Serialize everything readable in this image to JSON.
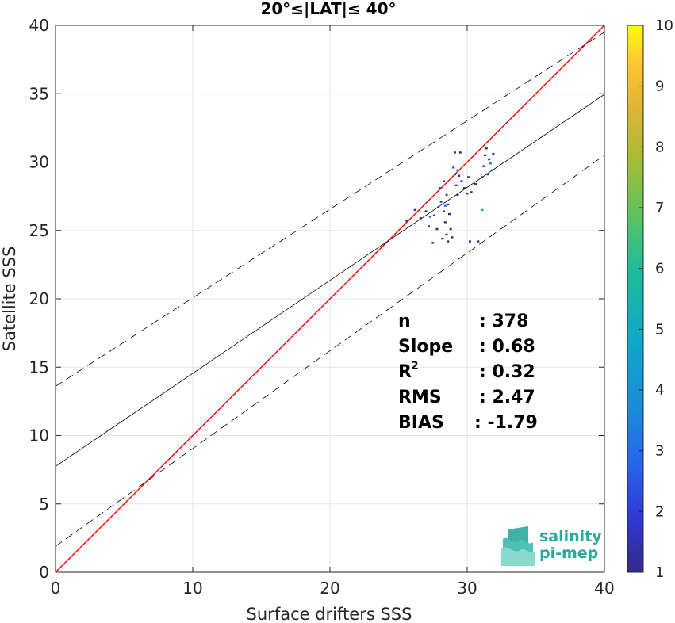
{
  "chart_data": {
    "type": "scatter",
    "title": "20°≤|LAT|≤ 40°",
    "xlabel": "Surface drifters SSS",
    "ylabel": "Satellite SSS",
    "xlim": [
      0,
      40
    ],
    "ylim": [
      0,
      40
    ],
    "xticks": [
      "0",
      "10",
      "20",
      "30",
      "40"
    ],
    "yticks": [
      "0",
      "5",
      "10",
      "15",
      "20",
      "25",
      "30",
      "35",
      "40"
    ],
    "grid": true,
    "colorbar": {
      "range": [
        1,
        10
      ],
      "ticks": [
        "1",
        "2",
        "3",
        "4",
        "5",
        "6",
        "7",
        "8",
        "9",
        "10"
      ],
      "colormap": "parula"
    },
    "lines": [
      {
        "kind": "identity",
        "color": "#ff0000",
        "x": [
          0,
          40
        ],
        "y": [
          0,
          40
        ]
      },
      {
        "kind": "fit",
        "color": "#000000",
        "style": "solid",
        "x": [
          0,
          40
        ],
        "y": [
          7.75,
          34.95
        ]
      },
      {
        "kind": "fit-upper",
        "color": "#000000",
        "style": "dashed",
        "x": [
          0,
          40
        ],
        "y": [
          13.6,
          39.5
        ]
      },
      {
        "kind": "fit-lower",
        "color": "#000000",
        "style": "dashed",
        "x": [
          0,
          40
        ],
        "y": [
          1.9,
          30.5
        ]
      }
    ],
    "points": [
      {
        "x": 25.6,
        "y": 25.7,
        "c": 1
      },
      {
        "x": 26.2,
        "y": 26.5,
        "c": 1
      },
      {
        "x": 26.6,
        "y": 25.9,
        "c": 1
      },
      {
        "x": 27.0,
        "y": 26.4,
        "c": 1
      },
      {
        "x": 27.2,
        "y": 25.3,
        "c": 1
      },
      {
        "x": 27.5,
        "y": 24.1,
        "c": 1
      },
      {
        "x": 27.8,
        "y": 25.1,
        "c": 1
      },
      {
        "x": 27.6,
        "y": 26.1,
        "c": 1
      },
      {
        "x": 27.9,
        "y": 26.7,
        "c": 1
      },
      {
        "x": 28.1,
        "y": 27.1,
        "c": 1
      },
      {
        "x": 28.3,
        "y": 26.4,
        "c": 2
      },
      {
        "x": 28.4,
        "y": 25.6,
        "c": 1
      },
      {
        "x": 28.5,
        "y": 24.7,
        "c": 1
      },
      {
        "x": 28.6,
        "y": 24.2,
        "c": 1
      },
      {
        "x": 28.2,
        "y": 24.4,
        "c": 1
      },
      {
        "x": 28.0,
        "y": 28.1,
        "c": 1
      },
      {
        "x": 28.3,
        "y": 28.6,
        "c": 1
      },
      {
        "x": 28.5,
        "y": 27.6,
        "c": 2
      },
      {
        "x": 28.6,
        "y": 26.9,
        "c": 1
      },
      {
        "x": 28.7,
        "y": 26.2,
        "c": 1
      },
      {
        "x": 28.8,
        "y": 25.1,
        "c": 1
      },
      {
        "x": 28.9,
        "y": 24.5,
        "c": 1
      },
      {
        "x": 29.0,
        "y": 29.6,
        "c": 2
      },
      {
        "x": 29.1,
        "y": 29.1,
        "c": 1
      },
      {
        "x": 29.2,
        "y": 28.3,
        "c": 2
      },
      {
        "x": 29.3,
        "y": 27.6,
        "c": 1
      },
      {
        "x": 29.1,
        "y": 30.7,
        "c": 1
      },
      {
        "x": 29.5,
        "y": 30.7,
        "c": 1
      },
      {
        "x": 29.4,
        "y": 29.0,
        "c": 1
      },
      {
        "x": 29.6,
        "y": 28.6,
        "c": 1
      },
      {
        "x": 29.8,
        "y": 28.1,
        "c": 1
      },
      {
        "x": 30.0,
        "y": 27.7,
        "c": 1
      },
      {
        "x": 30.3,
        "y": 27.8,
        "c": 1
      },
      {
        "x": 30.6,
        "y": 28.4,
        "c": 1
      },
      {
        "x": 30.2,
        "y": 24.2,
        "c": 1
      },
      {
        "x": 30.8,
        "y": 24.2,
        "c": 1
      },
      {
        "x": 31.1,
        "y": 28.9,
        "c": 1
      },
      {
        "x": 31.2,
        "y": 29.7,
        "c": 2
      },
      {
        "x": 31.3,
        "y": 30.5,
        "c": 1
      },
      {
        "x": 31.4,
        "y": 31.0,
        "c": 1
      },
      {
        "x": 31.6,
        "y": 30.2,
        "c": 1
      },
      {
        "x": 31.8,
        "y": 29.4,
        "c": 2
      },
      {
        "x": 31.9,
        "y": 30.6,
        "c": 1
      },
      {
        "x": 31.7,
        "y": 29.9,
        "c": 4
      },
      {
        "x": 31.1,
        "y": 26.5,
        "c": 5
      },
      {
        "x": 31.5,
        "y": 29.1,
        "c": 1
      },
      {
        "x": 27.3,
        "y": 26.0,
        "c": 3
      },
      {
        "x": 28.4,
        "y": 26.8,
        "c": 3
      },
      {
        "x": 29.3,
        "y": 29.4,
        "c": 3
      },
      {
        "x": 30.1,
        "y": 28.9,
        "c": 1
      }
    ],
    "stats": [
      {
        "label": "n",
        "value": ": 378"
      },
      {
        "label": "Slope",
        "value": ": 0.68"
      },
      {
        "label": "R",
        "sup": "2",
        "value": ": 0.32"
      },
      {
        "label": "RMS",
        "value": ": 2.47"
      },
      {
        "label": "BIAS",
        "value": ": -1.79"
      }
    ]
  },
  "logo": {
    "line1": "salinity",
    "line2": "pi-mep"
  }
}
